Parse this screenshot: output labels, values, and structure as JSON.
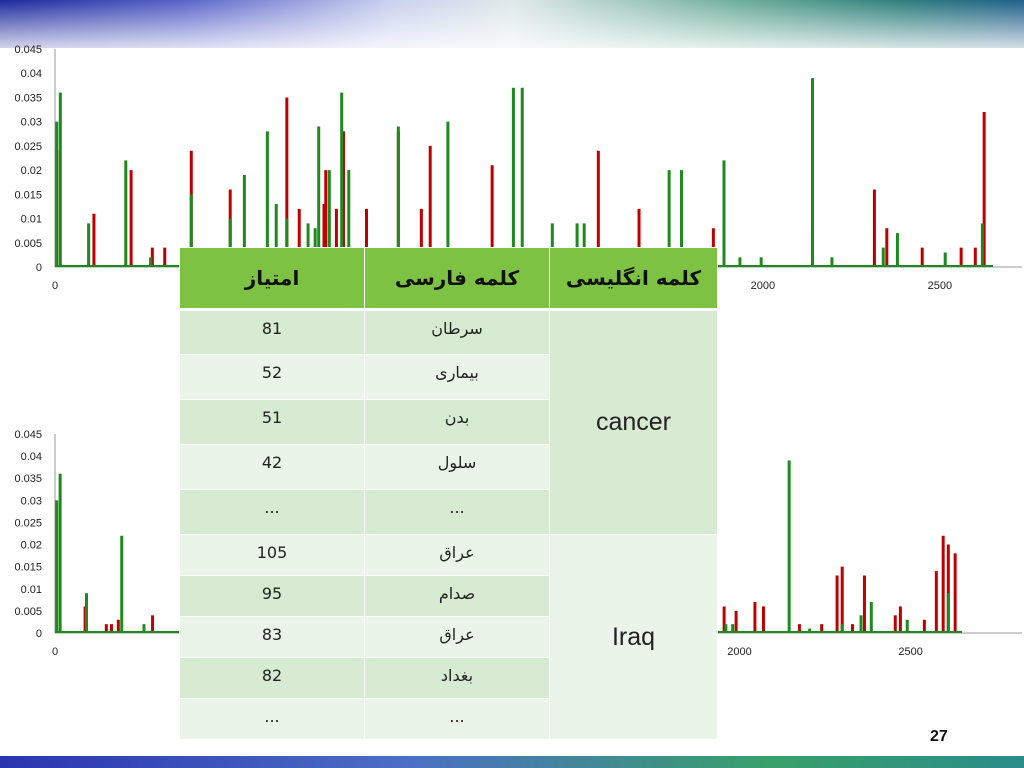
{
  "slide": {
    "page_number": "27"
  },
  "table": {
    "headers": {
      "col1": "کلمه انگلیسی",
      "col2": "کلمه فارسی",
      "col3": "امتیاز"
    },
    "groups": [
      {
        "english": "cancer",
        "rows": [
          {
            "fa": "سرطان",
            "score": "81"
          },
          {
            "fa": "بیماری",
            "score": "52"
          },
          {
            "fa": "بدن",
            "score": "51"
          },
          {
            "fa": "سلول",
            "score": "42"
          },
          {
            "fa": "...",
            "score": "..."
          }
        ]
      },
      {
        "english": "Iraq",
        "rows": [
          {
            "fa": "عراق",
            "score": "105"
          },
          {
            "fa": "صدام",
            "score": "95"
          },
          {
            "fa": "عراق",
            "score": "83"
          },
          {
            "fa": "بغداد",
            "score": "82"
          },
          {
            "fa": "...",
            "score": "..."
          }
        ]
      }
    ]
  },
  "chart_data": [
    {
      "type": "bar",
      "title": "",
      "xlabel": "",
      "ylabel": "",
      "xlim": [
        0,
        2650
      ],
      "ylim": [
        0,
        0.045
      ],
      "y_ticks": [
        "0",
        "0.005",
        "0.01",
        "0.015",
        "0.02",
        "0.025",
        "0.03",
        "0.035",
        "0.04",
        "0.045"
      ],
      "x_ticks": [
        "0",
        "2000",
        "2500"
      ],
      "series": [
        {
          "color": "#c00000",
          "points": [
            [
              5,
              0.024
            ],
            [
              110,
              0.011
            ],
            [
              215,
              0.02
            ],
            [
              275,
              0.004
            ],
            [
              310,
              0.004
            ],
            [
              385,
              0.024
            ],
            [
              495,
              0.016
            ],
            [
              655,
              0.035
            ],
            [
              690,
              0.012
            ],
            [
              760,
              0.013
            ],
            [
              765,
              0.02
            ],
            [
              795,
              0.012
            ],
            [
              815,
              0.028
            ],
            [
              880,
              0.012
            ],
            [
              970,
              0.028
            ],
            [
              1035,
              0.012
            ],
            [
              1060,
              0.025
            ],
            [
              1235,
              0.021
            ],
            [
              1535,
              0.024
            ],
            [
              1650,
              0.012
            ],
            [
              1860,
              0.008
            ],
            [
              2140,
              0.008
            ],
            [
              2315,
              0.016
            ],
            [
              2350,
              0.008
            ],
            [
              2450,
              0.004
            ],
            [
              2560,
              0.004
            ],
            [
              2600,
              0.004
            ],
            [
              2625,
              0.032
            ]
          ]
        },
        {
          "color": "#1e8a1e",
          "points": [
            [
              5,
              0.03
            ],
            [
              15,
              0.036
            ],
            [
              95,
              0.009
            ],
            [
              200,
              0.022
            ],
            [
              270,
              0.002
            ],
            [
              385,
              0.015
            ],
            [
              495,
              0.01
            ],
            [
              535,
              0.019
            ],
            [
              600,
              0.028
            ],
            [
              625,
              0.013
            ],
            [
              655,
              0.01
            ],
            [
              715,
              0.009
            ],
            [
              735,
              0.008
            ],
            [
              745,
              0.029
            ],
            [
              775,
              0.02
            ],
            [
              810,
              0.036
            ],
            [
              830,
              0.02
            ],
            [
              970,
              0.029
            ],
            [
              1110,
              0.03
            ],
            [
              1295,
              0.037
            ],
            [
              1320,
              0.037
            ],
            [
              1405,
              0.009
            ],
            [
              1475,
              0.009
            ],
            [
              1495,
              0.009
            ],
            [
              1735,
              0.02
            ],
            [
              1770,
              0.02
            ],
            [
              1890,
              0.022
            ],
            [
              1935,
              0.002
            ],
            [
              1995,
              0.002
            ],
            [
              2140,
              0.039
            ],
            [
              2195,
              0.002
            ],
            [
              2340,
              0.004
            ],
            [
              2380,
              0.007
            ],
            [
              2515,
              0.003
            ],
            [
              2620,
              0.009
            ]
          ]
        }
      ]
    },
    {
      "type": "bar",
      "title": "",
      "xlabel": "",
      "ylabel": "",
      "xlim": [
        0,
        2650
      ],
      "ylim": [
        0,
        0.045
      ],
      "y_ticks": [
        "0",
        "0.005",
        "0.01",
        "0.015",
        "0.02",
        "0.025",
        "0.03",
        "0.035",
        "0.04",
        "0.045"
      ],
      "x_ticks": [
        "0",
        "2000",
        "2500"
      ],
      "series": [
        {
          "color": "#c00000",
          "points": [
            [
              88,
              0.006
            ],
            [
              150,
              0.002
            ],
            [
              165,
              0.002
            ],
            [
              185,
              0.003
            ],
            [
              285,
              0.004
            ],
            [
              1905,
              0.009
            ],
            [
              1930,
              0.008
            ],
            [
              1955,
              0.006
            ],
            [
              1990,
              0.005
            ],
            [
              2045,
              0.007
            ],
            [
              2070,
              0.006
            ],
            [
              2175,
              0.002
            ],
            [
              2240,
              0.002
            ],
            [
              2285,
              0.013
            ],
            [
              2300,
              0.015
            ],
            [
              2330,
              0.002
            ],
            [
              2365,
              0.013
            ],
            [
              2455,
              0.004
            ],
            [
              2470,
              0.006
            ],
            [
              2540,
              0.003
            ],
            [
              2575,
              0.014
            ],
            [
              2595,
              0.022
            ],
            [
              2610,
              0.02
            ],
            [
              2630,
              0.018
            ]
          ]
        },
        {
          "color": "#1e8a1e",
          "points": [
            [
              5,
              0.03
            ],
            [
              15,
              0.036
            ],
            [
              92,
              0.009
            ],
            [
              195,
              0.022
            ],
            [
              260,
              0.002
            ],
            [
              1960,
              0.002
            ],
            [
              1980,
              0.002
            ],
            [
              2145,
              0.039
            ],
            [
              2205,
              0.001
            ],
            [
              2300,
              0.002
            ],
            [
              2355,
              0.004
            ],
            [
              2385,
              0.007
            ],
            [
              2490,
              0.003
            ],
            [
              2610,
              0.009
            ]
          ]
        }
      ]
    }
  ]
}
